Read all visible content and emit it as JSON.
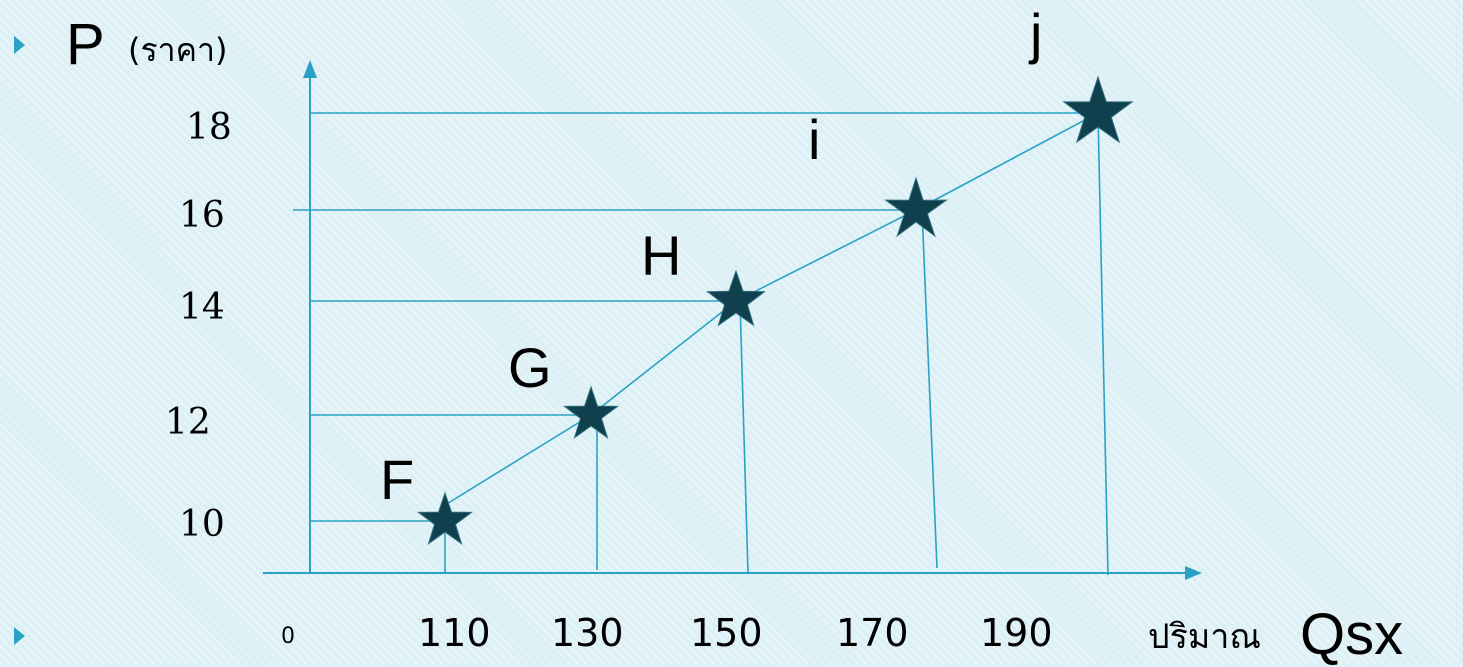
{
  "chart_data": {
    "type": "line",
    "y_axis_label": "P",
    "y_axis_label_note": "(ราคา)",
    "x_axis_label": "ปริมาณ",
    "x_axis_label_suffix": "Qsx",
    "origin_label": "0",
    "x_tick_labels": [
      "110",
      "130",
      "150",
      "170",
      "190"
    ],
    "y_tick_labels": [
      "10",
      "12",
      "14",
      "16",
      "18"
    ],
    "points": [
      {
        "label": "F",
        "x": 110,
        "y": 10
      },
      {
        "label": "G",
        "x": 130,
        "y": 12
      },
      {
        "label": "H",
        "x": 150,
        "y": 14
      },
      {
        "label": "i",
        "x": 170,
        "y": 16
      },
      {
        "label": "j",
        "x": 190,
        "y": 18
      }
    ],
    "marker": "star",
    "line_color": "#2aa2c4",
    "marker_color": "#10404e",
    "text_color": "#000000"
  }
}
